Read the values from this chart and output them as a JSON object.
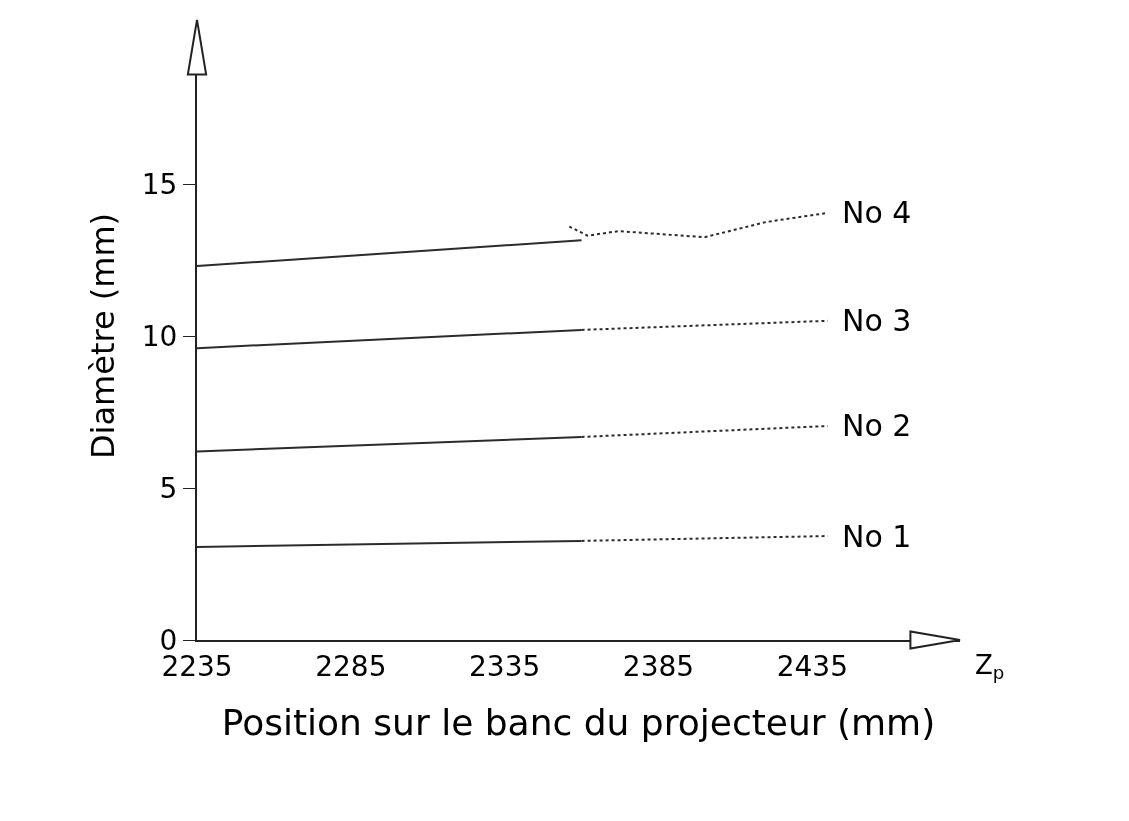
{
  "chart_data": {
    "type": "line",
    "xlabel": "Position sur le banc du projecteur (mm)",
    "ylabel": "Diamètre (mm)",
    "annotations": [
      "Z$_{p}$"
    ],
    "xlim": [
      2235,
      2483
    ],
    "xticks": [
      2235,
      2285,
      2335,
      2385,
      2435
    ],
    "ylim": [
      0,
      20
    ],
    "yticks": [
      0,
      5,
      10,
      15
    ],
    "grid": false,
    "legend": false,
    "marker": "none",
    "series": [
      {
        "color": "#2b2b2b",
        "line_style": "solid",
        "x": [
          2235,
          2360
        ],
        "values": [
          3.06,
          3.26
        ]
      },
      {
        "name": "No 1",
        "color": "#2b2b2b",
        "line_style": "dotted",
        "x": [
          2360,
          2440
        ],
        "values": [
          3.26,
          3.42
        ]
      },
      {
        "color": "#2b2b2b",
        "line_style": "solid",
        "x": [
          2235,
          2360
        ],
        "values": [
          6.2,
          6.68
        ]
      },
      {
        "name": "No 2",
        "color": "#2b2b2b",
        "line_style": "dotted",
        "x": [
          2360,
          2440
        ],
        "values": [
          6.68,
          7.04
        ]
      },
      {
        "color": "#2b2b2b",
        "line_style": "solid",
        "x": [
          2235,
          2360
        ],
        "values": [
          9.6,
          10.2
        ]
      },
      {
        "name": "No 3",
        "color": "#2b2b2b",
        "line_style": "dotted",
        "x": [
          2360,
          2440
        ],
        "values": [
          10.2,
          10.5
        ]
      },
      {
        "color": "#2b2b2b",
        "line_style": "solid",
        "x": [
          2235,
          2360
        ],
        "values": [
          12.3,
          13.15
        ]
      },
      {
        "name": "No 4",
        "color": "#2b2b2b",
        "line_style": "dotted",
        "x": [
          2356,
          2362,
          2372,
          2400,
          2420,
          2440
        ],
        "values": [
          13.6,
          13.3,
          13.45,
          13.25,
          13.75,
          14.05
        ]
      }
    ]
  }
}
